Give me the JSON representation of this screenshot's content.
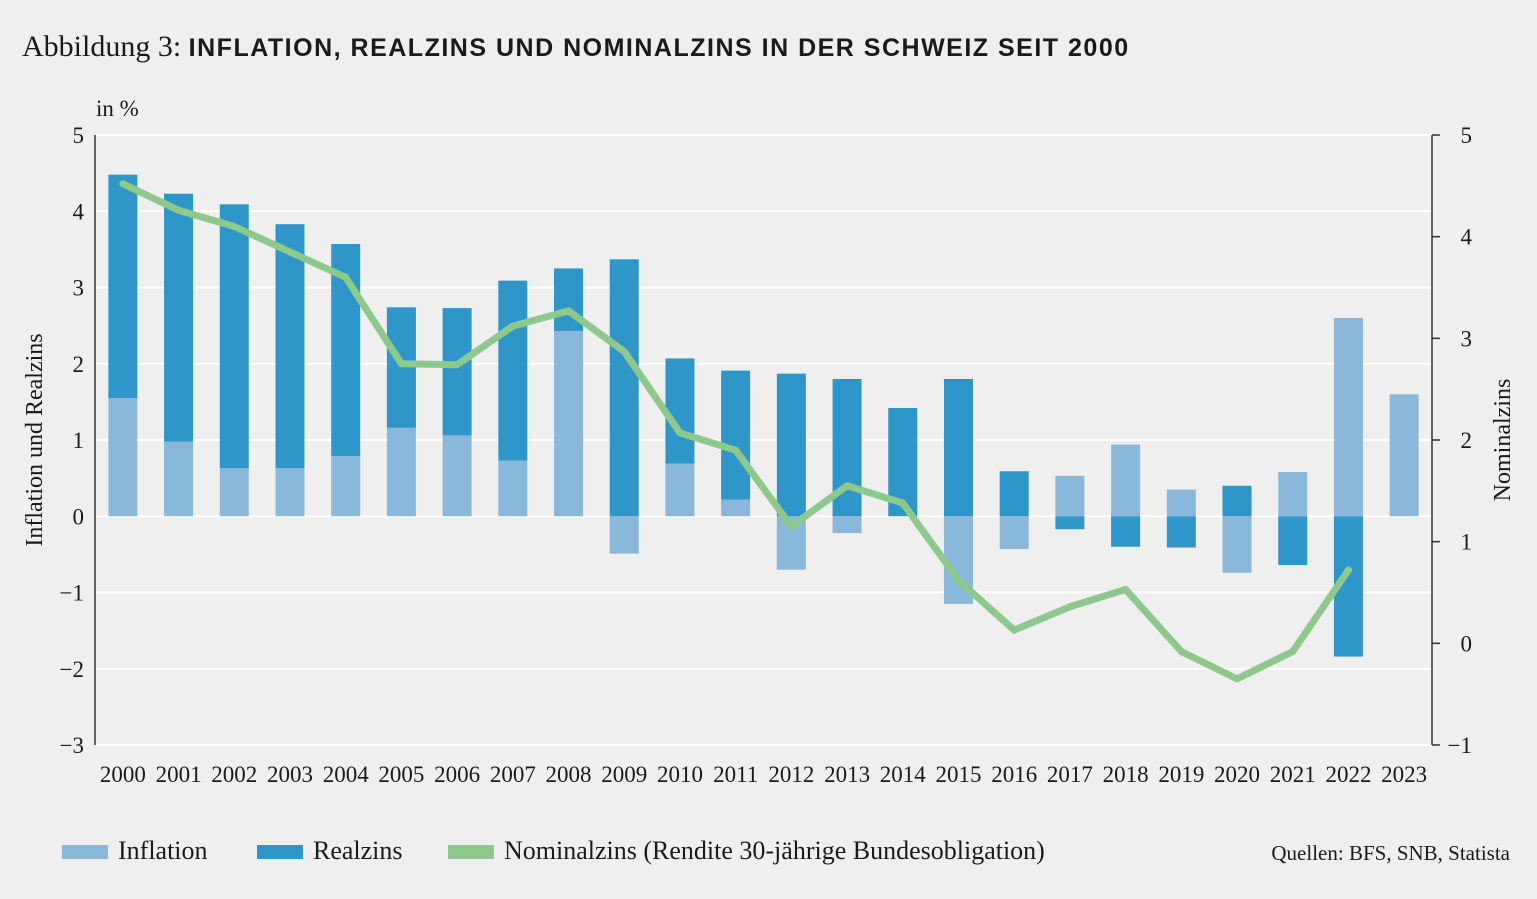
{
  "title": {
    "prefix": "Abbildung 3: ",
    "main": "INFLATION, REALZINS UND NOMINALZINS IN DER SCHWEIZ SEIT 2000"
  },
  "source": "Quellen: BFS, SNB, Statista",
  "colors": {
    "inflation": "#8ab8da",
    "realzins": "#2e96c8",
    "nominalzins": "#8ec98c",
    "grid": "#ffffff",
    "background": "#efefef"
  },
  "chart_data": {
    "type": "bar",
    "unit_label": "in %",
    "ylabel_left": "Inflation und Realzins",
    "ylabel_right": "Nominalzins",
    "ylim_left": [
      -3,
      5
    ],
    "yticks_left": [
      5,
      4,
      3,
      2,
      1,
      0,
      -1,
      -2,
      -3
    ],
    "ytick_labels_left": [
      "5",
      "4",
      "3",
      "2",
      "1",
      "0",
      "−1",
      "−2",
      "−3"
    ],
    "ylim_right": [
      -1,
      5
    ],
    "yticks_right": [
      5,
      4,
      3,
      2,
      1,
      0,
      -1
    ],
    "ytick_labels_right": [
      "5",
      "4",
      "3",
      "2",
      "1",
      "0",
      "−1"
    ],
    "grid": "horizontal",
    "legend_position": "bottom",
    "categories": [
      "2000",
      "2001",
      "2002",
      "2003",
      "2004",
      "2005",
      "2006",
      "2007",
      "2008",
      "2009",
      "2010",
      "2011",
      "2012",
      "2013",
      "2014",
      "2015",
      "2016",
      "2017",
      "2018",
      "2019",
      "2020",
      "2021",
      "2022",
      "2023"
    ],
    "series": [
      {
        "name": "Inflation",
        "kind": "bar",
        "axis": "left",
        "values": [
          1.55,
          0.98,
          0.63,
          0.63,
          0.79,
          1.16,
          1.06,
          0.73,
          2.43,
          -0.49,
          0.69,
          0.22,
          -0.7,
          -0.22,
          0.0,
          -1.15,
          -0.43,
          0.53,
          0.94,
          0.35,
          -0.74,
          0.58,
          2.6,
          1.6
        ]
      },
      {
        "name": "Realzins",
        "kind": "bar_stacked",
        "axis": "left",
        "values": [
          2.93,
          3.25,
          3.46,
          3.2,
          2.78,
          1.58,
          1.67,
          2.36,
          0.82,
          3.37,
          1.38,
          1.69,
          1.87,
          1.8,
          1.42,
          1.8,
          0.59,
          -0.17,
          -0.4,
          -0.41,
          0.4,
          -0.64,
          -1.84,
          0.0
        ]
      },
      {
        "name": "Nominalzins (Rendite 30-jährige Bundesobligation)",
        "kind": "line",
        "axis": "right",
        "x": [
          "2000",
          "2001",
          "2002",
          "2003",
          "2004",
          "2005",
          "2006",
          "2007",
          "2008",
          "2009",
          "2010",
          "2011",
          "2012",
          "2013",
          "2014",
          "2015",
          "2016",
          "2017",
          "2018",
          "2019",
          "2020",
          "2021",
          "2022"
        ],
        "values": [
          4.52,
          4.26,
          4.1,
          3.85,
          3.6,
          2.75,
          2.74,
          3.12,
          3.27,
          2.87,
          2.07,
          1.9,
          1.15,
          1.55,
          1.38,
          0.62,
          0.13,
          0.36,
          0.53,
          -0.08,
          -0.35,
          -0.08,
          0.72
        ]
      }
    ]
  }
}
